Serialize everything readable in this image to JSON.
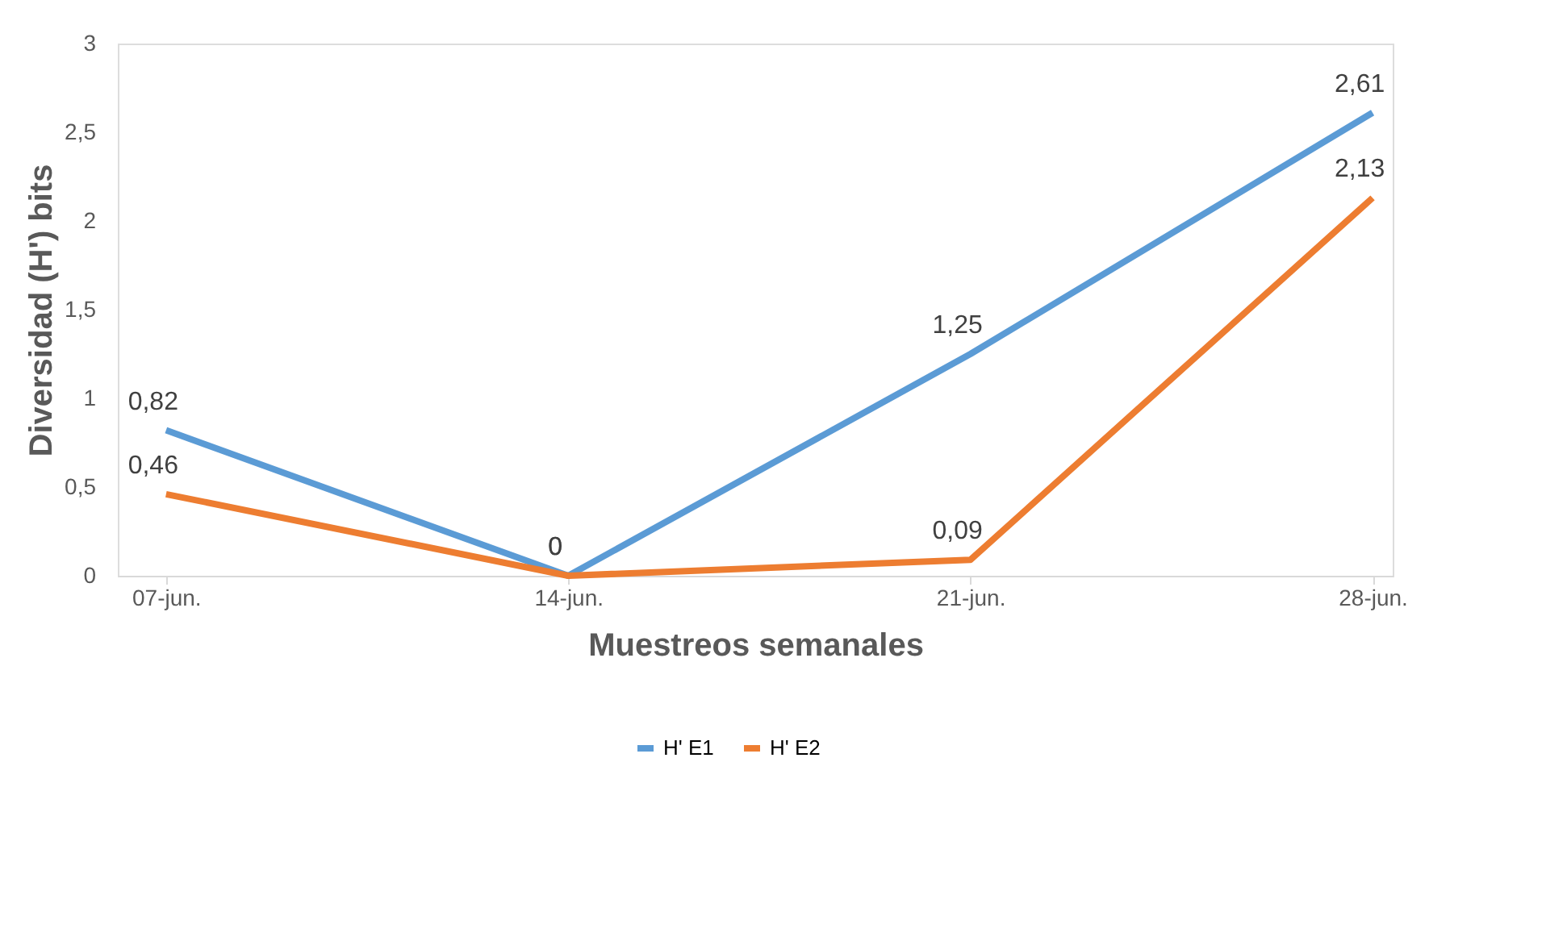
{
  "chart_data": {
    "type": "line",
    "xlabel": "Muestreos semanales",
    "ylabel": "Diversidad (H') bits",
    "categories": [
      "07-jun.",
      "14-jun.",
      "21-jun.",
      "28-jun."
    ],
    "series": [
      {
        "name": "H' E1",
        "color": "#5b9bd5",
        "values": [
          0.82,
          0,
          1.25,
          2.61
        ],
        "value_labels": [
          "0,82",
          "0",
          "1,25",
          "2,61"
        ]
      },
      {
        "name": "H' E2",
        "color": "#ed7d31",
        "values": [
          0.46,
          0,
          0.09,
          2.13
        ],
        "value_labels": [
          "0,46",
          "0",
          "0,09",
          "2,13"
        ]
      }
    ],
    "ylim": [
      0,
      3
    ],
    "yticks": [
      0,
      {
        "value": 0.5,
        "label": "0,5"
      },
      1,
      {
        "value": 1.5,
        "label": "1,5"
      },
      2,
      {
        "value": 2.5,
        "label": "2,5"
      },
      3
    ],
    "grid": false,
    "legend": "bottom",
    "marker": "none",
    "line_style": "solid"
  }
}
